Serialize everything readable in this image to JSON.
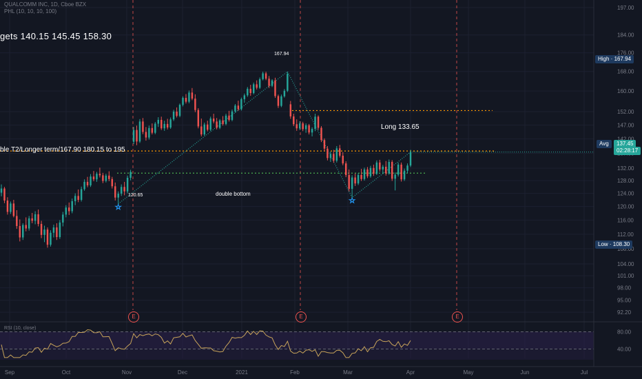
{
  "legend": {
    "title": "QUALCOMM INC, 1D, Cboe BZX",
    "indicator": "PHL (10, 10, 10, 100)"
  },
  "annotations": {
    "targets": "gets  140.15  145.45  158.30",
    "longterm": "ble T2/Longer term/167.90  180.15 to 195",
    "long": "Long 133.65",
    "double_bottom": "double bottom",
    "high_label": "167.94",
    "low_label": "120.65"
  },
  "price_tags": {
    "high": "High · 167.94",
    "avg": "Avg",
    "current": "137.45",
    "countdown": "02:28:17",
    "low": "Low · 108.30"
  },
  "earnings_marker": "E",
  "rsi_legend": "RSI (10, close)",
  "chart_data": {
    "type": "candlestick",
    "colors": {
      "up": "#26a69a",
      "down": "#ef5350",
      "background": "#131722",
      "rsi": "#c8a45a",
      "rsi_band": "#2a1f4a"
    },
    "y_ticks": [
      "197.00",
      "184.00",
      "176.00",
      "168.00",
      "160.00",
      "152.00",
      "147.00",
      "142.00",
      "137.00",
      "132.00",
      "128.00",
      "124.00",
      "120.00",
      "116.00",
      "112.00",
      "108.00",
      "104.00",
      "101.00",
      "98.00",
      "95.00",
      "92.20"
    ],
    "ylim": [
      90.5,
      198
    ],
    "rsi_ticks": [
      "80.00",
      "40.00"
    ],
    "x_ticks": [
      "Sep",
      "Oct",
      "Nov",
      "Dec",
      "2021",
      "Feb",
      "Mar",
      "Apr",
      "May",
      "Jun",
      "Jul"
    ],
    "candles": [
      {
        "o": 124.2,
        "h": 126.8,
        "l": 123.1,
        "c": 125.5
      },
      {
        "o": 125.5,
        "h": 126.0,
        "l": 121.0,
        "c": 121.8
      },
      {
        "o": 121.8,
        "h": 122.8,
        "l": 117.6,
        "c": 118.4
      },
      {
        "o": 118.4,
        "h": 121.5,
        "l": 117.8,
        "c": 120.9
      },
      {
        "o": 120.9,
        "h": 122.0,
        "l": 116.8,
        "c": 117.2
      },
      {
        "o": 117.2,
        "h": 118.9,
        "l": 113.5,
        "c": 114.3
      },
      {
        "o": 114.3,
        "h": 116.2,
        "l": 110.0,
        "c": 111.1
      },
      {
        "o": 111.1,
        "h": 115.1,
        "l": 110.4,
        "c": 114.6
      },
      {
        "o": 114.6,
        "h": 116.8,
        "l": 112.8,
        "c": 113.6
      },
      {
        "o": 113.6,
        "h": 117.2,
        "l": 113.0,
        "c": 116.5
      },
      {
        "o": 116.5,
        "h": 118.1,
        "l": 115.1,
        "c": 115.8
      },
      {
        "o": 115.8,
        "h": 118.6,
        "l": 114.8,
        "c": 117.7
      },
      {
        "o": 117.7,
        "h": 119.1,
        "l": 114.2,
        "c": 114.9
      },
      {
        "o": 114.9,
        "h": 115.8,
        "l": 110.9,
        "c": 111.8
      },
      {
        "o": 111.8,
        "h": 114.4,
        "l": 109.8,
        "c": 113.3
      },
      {
        "o": 113.3,
        "h": 113.9,
        "l": 108.3,
        "c": 109.1
      },
      {
        "o": 109.1,
        "h": 113.1,
        "l": 108.6,
        "c": 112.4
      },
      {
        "o": 112.4,
        "h": 114.7,
        "l": 111.1,
        "c": 113.9
      },
      {
        "o": 113.9,
        "h": 115.1,
        "l": 110.4,
        "c": 111.2
      },
      {
        "o": 111.2,
        "h": 116.0,
        "l": 110.7,
        "c": 115.3
      },
      {
        "o": 115.3,
        "h": 118.4,
        "l": 114.2,
        "c": 117.6
      },
      {
        "o": 117.6,
        "h": 120.4,
        "l": 116.8,
        "c": 119.7
      },
      {
        "o": 119.7,
        "h": 121.2,
        "l": 117.5,
        "c": 118.6
      },
      {
        "o": 118.6,
        "h": 122.4,
        "l": 118.0,
        "c": 121.6
      },
      {
        "o": 121.6,
        "h": 124.0,
        "l": 120.4,
        "c": 123.2
      },
      {
        "o": 123.2,
        "h": 125.2,
        "l": 121.3,
        "c": 122.0
      },
      {
        "o": 122.0,
        "h": 126.1,
        "l": 121.5,
        "c": 125.3
      },
      {
        "o": 125.3,
        "h": 128.4,
        "l": 124.8,
        "c": 127.6
      },
      {
        "o": 127.6,
        "h": 129.2,
        "l": 125.9,
        "c": 126.5
      },
      {
        "o": 126.5,
        "h": 130.1,
        "l": 126.0,
        "c": 129.3
      },
      {
        "o": 129.3,
        "h": 131.1,
        "l": 127.8,
        "c": 128.4
      },
      {
        "o": 128.4,
        "h": 130.8,
        "l": 127.6,
        "c": 130.2
      },
      {
        "o": 130.2,
        "h": 132.2,
        "l": 129.0,
        "c": 129.7
      },
      {
        "o": 129.7,
        "h": 130.5,
        "l": 127.2,
        "c": 127.9
      },
      {
        "o": 127.9,
        "h": 130.2,
        "l": 127.4,
        "c": 129.6
      },
      {
        "o": 129.6,
        "h": 131.0,
        "l": 127.8,
        "c": 128.5
      },
      {
        "o": 128.5,
        "h": 129.2,
        "l": 125.5,
        "c": 126.2
      },
      {
        "o": 126.2,
        "h": 127.4,
        "l": 121.8,
        "c": 122.7
      },
      {
        "o": 122.7,
        "h": 124.6,
        "l": 120.8,
        "c": 123.9
      },
      {
        "o": 123.9,
        "h": 126.8,
        "l": 123.2,
        "c": 126.0
      },
      {
        "o": 126.0,
        "h": 127.6,
        "l": 123.4,
        "c": 124.6
      },
      {
        "o": 124.6,
        "h": 129.6,
        "l": 124.0,
        "c": 128.9
      },
      {
        "o": 128.9,
        "h": 131.5,
        "l": 128.1,
        "c": 130.8
      },
      {
        "o": 141.0,
        "h": 146.3,
        "l": 140.2,
        "c": 145.2
      },
      {
        "o": 145.2,
        "h": 146.8,
        "l": 139.8,
        "c": 141.1
      },
      {
        "o": 141.1,
        "h": 149.2,
        "l": 140.6,
        "c": 148.3
      },
      {
        "o": 148.3,
        "h": 149.6,
        "l": 143.7,
        "c": 144.5
      },
      {
        "o": 144.5,
        "h": 146.3,
        "l": 141.4,
        "c": 142.5
      },
      {
        "o": 142.5,
        "h": 146.8,
        "l": 141.8,
        "c": 145.9
      },
      {
        "o": 145.9,
        "h": 147.6,
        "l": 143.6,
        "c": 144.2
      },
      {
        "o": 144.2,
        "h": 148.1,
        "l": 143.7,
        "c": 147.5
      },
      {
        "o": 147.5,
        "h": 149.9,
        "l": 146.3,
        "c": 148.9
      },
      {
        "o": 148.9,
        "h": 150.1,
        "l": 145.2,
        "c": 145.8
      },
      {
        "o": 145.8,
        "h": 148.6,
        "l": 144.9,
        "c": 147.4
      },
      {
        "o": 147.4,
        "h": 149.3,
        "l": 145.4,
        "c": 146.1
      },
      {
        "o": 146.1,
        "h": 149.8,
        "l": 145.6,
        "c": 149.1
      },
      {
        "o": 149.1,
        "h": 152.7,
        "l": 148.5,
        "c": 152.0
      },
      {
        "o": 152.0,
        "h": 153.6,
        "l": 149.8,
        "c": 150.4
      },
      {
        "o": 150.4,
        "h": 155.1,
        "l": 149.9,
        "c": 154.6
      },
      {
        "o": 154.6,
        "h": 157.9,
        "l": 154.0,
        "c": 157.3
      },
      {
        "o": 157.3,
        "h": 158.8,
        "l": 155.1,
        "c": 155.8
      },
      {
        "o": 155.8,
        "h": 160.2,
        "l": 155.2,
        "c": 159.4
      },
      {
        "o": 159.4,
        "h": 161.2,
        "l": 156.4,
        "c": 157.0
      },
      {
        "o": 157.0,
        "h": 158.7,
        "l": 151.8,
        "c": 152.6
      },
      {
        "o": 152.6,
        "h": 153.3,
        "l": 145.8,
        "c": 146.5
      },
      {
        "o": 146.5,
        "h": 149.4,
        "l": 142.9,
        "c": 143.6
      },
      {
        "o": 143.6,
        "h": 147.9,
        "l": 143.1,
        "c": 147.2
      },
      {
        "o": 147.2,
        "h": 148.6,
        "l": 144.7,
        "c": 145.3
      },
      {
        "o": 145.3,
        "h": 150.1,
        "l": 144.8,
        "c": 149.4
      },
      {
        "o": 149.4,
        "h": 151.2,
        "l": 147.6,
        "c": 148.3
      },
      {
        "o": 148.3,
        "h": 149.6,
        "l": 145.4,
        "c": 146.0
      },
      {
        "o": 146.0,
        "h": 149.2,
        "l": 145.5,
        "c": 148.7
      },
      {
        "o": 148.7,
        "h": 150.3,
        "l": 146.8,
        "c": 147.4
      },
      {
        "o": 147.4,
        "h": 151.2,
        "l": 146.9,
        "c": 150.5
      },
      {
        "o": 150.5,
        "h": 152.3,
        "l": 148.3,
        "c": 148.9
      },
      {
        "o": 148.9,
        "h": 152.8,
        "l": 148.4,
        "c": 152.1
      },
      {
        "o": 152.1,
        "h": 154.9,
        "l": 151.6,
        "c": 154.3
      },
      {
        "o": 154.3,
        "h": 156.2,
        "l": 152.3,
        "c": 152.9
      },
      {
        "o": 152.9,
        "h": 157.4,
        "l": 152.4,
        "c": 156.8
      },
      {
        "o": 156.8,
        "h": 159.0,
        "l": 155.4,
        "c": 158.3
      },
      {
        "o": 158.3,
        "h": 161.6,
        "l": 157.7,
        "c": 160.9
      },
      {
        "o": 160.9,
        "h": 162.5,
        "l": 158.1,
        "c": 159.2
      },
      {
        "o": 159.2,
        "h": 163.4,
        "l": 158.7,
        "c": 162.7
      },
      {
        "o": 162.7,
        "h": 164.3,
        "l": 160.6,
        "c": 161.3
      },
      {
        "o": 161.3,
        "h": 165.5,
        "l": 160.8,
        "c": 164.8
      },
      {
        "o": 164.8,
        "h": 167.9,
        "l": 164.3,
        "c": 167.2
      },
      {
        "o": 167.2,
        "h": 167.9,
        "l": 164.4,
        "c": 165.0
      },
      {
        "o": 165.0,
        "h": 166.1,
        "l": 161.2,
        "c": 162.1
      },
      {
        "o": 162.1,
        "h": 164.8,
        "l": 161.6,
        "c": 164.3
      },
      {
        "o": 164.3,
        "h": 165.4,
        "l": 157.3,
        "c": 158.0
      },
      {
        "o": 158.0,
        "h": 158.6,
        "l": 153.4,
        "c": 154.2
      },
      {
        "o": 154.2,
        "h": 158.6,
        "l": 153.7,
        "c": 157.9
      },
      {
        "o": 157.9,
        "h": 160.8,
        "l": 157.4,
        "c": 160.1
      },
      {
        "o": 160.1,
        "h": 167.94,
        "l": 159.6,
        "c": 167.0
      },
      {
        "o": 154.8,
        "h": 156.1,
        "l": 149.3,
        "c": 150.2
      },
      {
        "o": 150.2,
        "h": 151.2,
        "l": 146.6,
        "c": 147.3
      },
      {
        "o": 147.3,
        "h": 149.1,
        "l": 144.9,
        "c": 145.8
      },
      {
        "o": 145.8,
        "h": 148.4,
        "l": 145.2,
        "c": 147.6
      },
      {
        "o": 147.6,
        "h": 148.2,
        "l": 144.8,
        "c": 145.5
      },
      {
        "o": 145.5,
        "h": 147.6,
        "l": 144.2,
        "c": 146.9
      },
      {
        "o": 146.9,
        "h": 147.4,
        "l": 143.6,
        "c": 144.3
      },
      {
        "o": 144.3,
        "h": 146.2,
        "l": 142.9,
        "c": 145.6
      },
      {
        "o": 145.6,
        "h": 151.2,
        "l": 144.8,
        "c": 150.1
      },
      {
        "o": 150.1,
        "h": 150.6,
        "l": 145.2,
        "c": 146.0
      },
      {
        "o": 146.0,
        "h": 146.6,
        "l": 140.9,
        "c": 141.6
      },
      {
        "o": 141.6,
        "h": 142.2,
        "l": 137.8,
        "c": 138.6
      },
      {
        "o": 138.6,
        "h": 139.5,
        "l": 134.6,
        "c": 135.4
      },
      {
        "o": 135.4,
        "h": 137.6,
        "l": 134.1,
        "c": 136.8
      },
      {
        "o": 136.8,
        "h": 138.2,
        "l": 133.8,
        "c": 134.5
      },
      {
        "o": 134.5,
        "h": 139.5,
        "l": 133.9,
        "c": 138.7
      },
      {
        "o": 138.7,
        "h": 139.9,
        "l": 135.6,
        "c": 136.2
      },
      {
        "o": 136.2,
        "h": 137.4,
        "l": 133.0,
        "c": 133.6
      },
      {
        "o": 133.6,
        "h": 134.3,
        "l": 129.1,
        "c": 129.8
      },
      {
        "o": 129.8,
        "h": 131.6,
        "l": 124.6,
        "c": 125.4
      },
      {
        "o": 125.4,
        "h": 129.7,
        "l": 122.7,
        "c": 129.0
      },
      {
        "o": 129.0,
        "h": 130.2,
        "l": 126.3,
        "c": 127.1
      },
      {
        "o": 127.1,
        "h": 130.4,
        "l": 126.6,
        "c": 129.8
      },
      {
        "o": 129.8,
        "h": 131.8,
        "l": 127.9,
        "c": 128.5
      },
      {
        "o": 128.5,
        "h": 132.2,
        "l": 128.0,
        "c": 131.6
      },
      {
        "o": 131.6,
        "h": 132.4,
        "l": 128.8,
        "c": 129.4
      },
      {
        "o": 129.4,
        "h": 132.8,
        "l": 128.9,
        "c": 132.1
      },
      {
        "o": 132.1,
        "h": 133.2,
        "l": 129.5,
        "c": 130.2
      },
      {
        "o": 130.2,
        "h": 134.6,
        "l": 129.8,
        "c": 133.9
      },
      {
        "o": 133.9,
        "h": 134.8,
        "l": 130.9,
        "c": 131.6
      },
      {
        "o": 131.6,
        "h": 133.1,
        "l": 130.2,
        "c": 132.5
      },
      {
        "o": 132.5,
        "h": 134.4,
        "l": 129.6,
        "c": 130.3
      },
      {
        "o": 130.3,
        "h": 134.9,
        "l": 129.9,
        "c": 134.1
      },
      {
        "o": 134.1,
        "h": 134.7,
        "l": 127.9,
        "c": 128.6
      },
      {
        "o": 128.6,
        "h": 130.6,
        "l": 124.9,
        "c": 129.9
      },
      {
        "o": 129.9,
        "h": 133.9,
        "l": 129.3,
        "c": 133.2
      },
      {
        "o": 133.2,
        "h": 133.9,
        "l": 127.7,
        "c": 128.4
      },
      {
        "o": 128.4,
        "h": 131.9,
        "l": 127.9,
        "c": 131.2
      },
      {
        "o": 131.2,
        "h": 133.6,
        "l": 130.4,
        "c": 132.9
      },
      {
        "o": 132.9,
        "h": 138.2,
        "l": 132.4,
        "c": 137.45
      }
    ],
    "levels": [
      {
        "name": "long_term_line",
        "price": 137.8,
        "color": "#ff9800"
      },
      {
        "name": "upper_resistance",
        "price": 152.4,
        "color": "#ff9800"
      },
      {
        "name": "neckline",
        "price": 130.4,
        "color": "#4caf50"
      }
    ],
    "current_price": 137.45,
    "high": 167.94,
    "low": 108.3
  }
}
